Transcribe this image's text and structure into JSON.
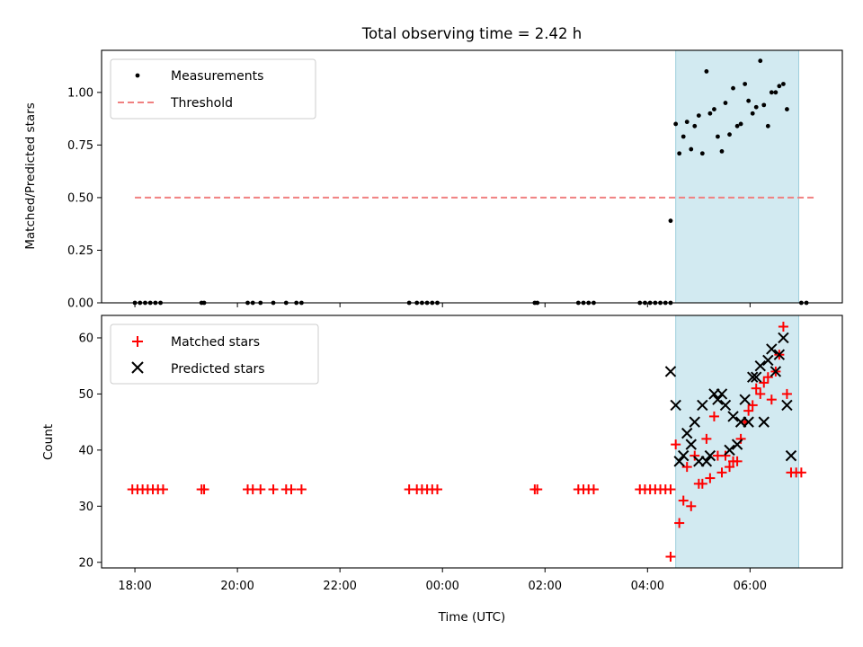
{
  "chart_data": [
    {
      "type": "scatter",
      "title": "Total observing time = 2.42 h",
      "xlabel": "",
      "ylabel": "Matched/Predicted stars",
      "ylim": [
        0,
        1.2
      ],
      "yticks": [
        "0.00",
        "0.25",
        "0.50",
        "0.75",
        "1.00"
      ],
      "xlim_hours": [
        -0.65,
        13.8
      ],
      "xtick_hours": [
        0,
        2,
        4,
        6,
        8,
        10,
        12,
        14
      ],
      "observing_window_hours": [
        10.55,
        12.95
      ],
      "legend_position": "top-left",
      "shaded_color": "#add8e6",
      "series": [
        {
          "name": "Measurements",
          "marker": "dot",
          "color": "#000000",
          "points": [
            [
              0.0,
              0
            ],
            [
              0.1,
              0
            ],
            [
              0.2,
              0
            ],
            [
              0.3,
              0
            ],
            [
              0.4,
              0
            ],
            [
              0.5,
              0
            ],
            [
              1.3,
              0
            ],
            [
              1.35,
              0
            ],
            [
              2.2,
              0
            ],
            [
              2.3,
              0
            ],
            [
              2.45,
              0
            ],
            [
              2.7,
              0
            ],
            [
              2.95,
              0
            ],
            [
              3.15,
              0
            ],
            [
              3.25,
              0
            ],
            [
              5.35,
              0
            ],
            [
              5.5,
              0
            ],
            [
              5.6,
              0
            ],
            [
              5.7,
              0
            ],
            [
              5.8,
              0
            ],
            [
              5.9,
              0
            ],
            [
              7.8,
              0
            ],
            [
              7.85,
              0
            ],
            [
              8.65,
              0
            ],
            [
              8.75,
              0
            ],
            [
              8.85,
              0
            ],
            [
              8.95,
              0
            ],
            [
              9.85,
              0
            ],
            [
              9.95,
              0
            ],
            [
              10.05,
              0
            ],
            [
              10.15,
              0
            ],
            [
              10.25,
              0
            ],
            [
              10.35,
              0
            ],
            [
              10.45,
              0
            ],
            [
              10.45,
              0.39
            ],
            [
              10.55,
              0.85
            ],
            [
              10.62,
              0.71
            ],
            [
              10.7,
              0.79
            ],
            [
              10.77,
              0.86
            ],
            [
              10.85,
              0.73
            ],
            [
              10.92,
              0.84
            ],
            [
              11.0,
              0.89
            ],
            [
              11.07,
              0.71
            ],
            [
              11.15,
              1.1
            ],
            [
              11.22,
              0.9
            ],
            [
              11.3,
              0.92
            ],
            [
              11.37,
              0.79
            ],
            [
              11.45,
              0.72
            ],
            [
              11.52,
              0.95
            ],
            [
              11.6,
              0.8
            ],
            [
              11.67,
              1.02
            ],
            [
              11.75,
              0.84
            ],
            [
              11.82,
              0.85
            ],
            [
              11.9,
              1.04
            ],
            [
              11.97,
              0.96
            ],
            [
              12.05,
              0.9
            ],
            [
              12.12,
              0.93
            ],
            [
              12.2,
              1.15
            ],
            [
              12.27,
              0.94
            ],
            [
              12.35,
              0.84
            ],
            [
              12.42,
              1.0
            ],
            [
              12.5,
              1.0
            ],
            [
              12.57,
              1.03
            ],
            [
              12.65,
              1.04
            ],
            [
              12.72,
              0.92
            ],
            [
              13.0,
              0
            ],
            [
              13.1,
              0
            ]
          ]
        },
        {
          "name": "Threshold",
          "marker": "dashed-line",
          "color": "#f08080",
          "x": [
            0,
            13.3
          ],
          "y": [
            0.5,
            0.5
          ]
        }
      ]
    },
    {
      "type": "scatter",
      "title": "",
      "xlabel": "Time (UTC)",
      "ylabel": "Count",
      "ylim": [
        19,
        64
      ],
      "yticks": [
        "20",
        "30",
        "40",
        "50",
        "60"
      ],
      "xlim_hours": [
        -0.65,
        13.8
      ],
      "xtick_hours": [
        0,
        2,
        4,
        6,
        8,
        10,
        12
      ],
      "xtick_labels": [
        "18:00",
        "20:00",
        "22:00",
        "00:00",
        "02:00",
        "04:00",
        "06:00"
      ],
      "observing_window_hours": [
        10.55,
        12.95
      ],
      "legend_position": "top-left",
      "shaded_color": "#add8e6",
      "series": [
        {
          "name": "Matched stars",
          "marker": "plus",
          "color": "#ff0000",
          "points": [
            [
              -0.05,
              33
            ],
            [
              0.05,
              33
            ],
            [
              0.15,
              33
            ],
            [
              0.25,
              33
            ],
            [
              0.35,
              33
            ],
            [
              0.45,
              33
            ],
            [
              0.55,
              33
            ],
            [
              1.3,
              33
            ],
            [
              1.35,
              33
            ],
            [
              2.2,
              33
            ],
            [
              2.3,
              33
            ],
            [
              2.45,
              33
            ],
            [
              2.7,
              33
            ],
            [
              2.95,
              33
            ],
            [
              3.05,
              33
            ],
            [
              3.25,
              33
            ],
            [
              5.35,
              33
            ],
            [
              5.5,
              33
            ],
            [
              5.6,
              33
            ],
            [
              5.7,
              33
            ],
            [
              5.8,
              33
            ],
            [
              5.9,
              33
            ],
            [
              7.8,
              33
            ],
            [
              7.85,
              33
            ],
            [
              8.65,
              33
            ],
            [
              8.75,
              33
            ],
            [
              8.85,
              33
            ],
            [
              8.95,
              33
            ],
            [
              9.85,
              33
            ],
            [
              9.95,
              33
            ],
            [
              10.05,
              33
            ],
            [
              10.15,
              33
            ],
            [
              10.25,
              33
            ],
            [
              10.35,
              33
            ],
            [
              10.45,
              33
            ],
            [
              10.45,
              21
            ],
            [
              10.55,
              41
            ],
            [
              10.62,
              27
            ],
            [
              10.7,
              31
            ],
            [
              10.77,
              37
            ],
            [
              10.85,
              30
            ],
            [
              10.92,
              39
            ],
            [
              11.0,
              34
            ],
            [
              11.07,
              34
            ],
            [
              11.15,
              42
            ],
            [
              11.22,
              35
            ],
            [
              11.3,
              46
            ],
            [
              11.37,
              39
            ],
            [
              11.45,
              36
            ],
            [
              11.52,
              39
            ],
            [
              11.6,
              37
            ],
            [
              11.67,
              38
            ],
            [
              11.75,
              38
            ],
            [
              11.82,
              42
            ],
            [
              11.9,
              45
            ],
            [
              11.97,
              47
            ],
            [
              12.05,
              48
            ],
            [
              12.12,
              51
            ],
            [
              12.2,
              50
            ],
            [
              12.27,
              52
            ],
            [
              12.35,
              53
            ],
            [
              12.42,
              49
            ],
            [
              12.5,
              54
            ],
            [
              12.57,
              57
            ],
            [
              12.65,
              62
            ],
            [
              12.72,
              50
            ],
            [
              12.8,
              36
            ],
            [
              12.9,
              36
            ],
            [
              13.0,
              36
            ]
          ]
        },
        {
          "name": "Predicted stars",
          "marker": "x",
          "color": "#000000",
          "points": [
            [
              10.45,
              54
            ],
            [
              10.55,
              48
            ],
            [
              10.62,
              38
            ],
            [
              10.7,
              39
            ],
            [
              10.77,
              43
            ],
            [
              10.85,
              41
            ],
            [
              10.92,
              45
            ],
            [
              11.0,
              38
            ],
            [
              11.07,
              48
            ],
            [
              11.15,
              38
            ],
            [
              11.22,
              39
            ],
            [
              11.3,
              50
            ],
            [
              11.37,
              49
            ],
            [
              11.45,
              50
            ],
            [
              11.52,
              48
            ],
            [
              11.6,
              40
            ],
            [
              11.67,
              46
            ],
            [
              11.75,
              41
            ],
            [
              11.82,
              45
            ],
            [
              11.9,
              49
            ],
            [
              11.97,
              45
            ],
            [
              12.05,
              53
            ],
            [
              12.12,
              53
            ],
            [
              12.2,
              55
            ],
            [
              12.27,
              45
            ],
            [
              12.35,
              56
            ],
            [
              12.42,
              58
            ],
            [
              12.5,
              54
            ],
            [
              12.57,
              57
            ],
            [
              12.65,
              60
            ],
            [
              12.72,
              48
            ],
            [
              12.8,
              39
            ]
          ]
        }
      ]
    }
  ]
}
